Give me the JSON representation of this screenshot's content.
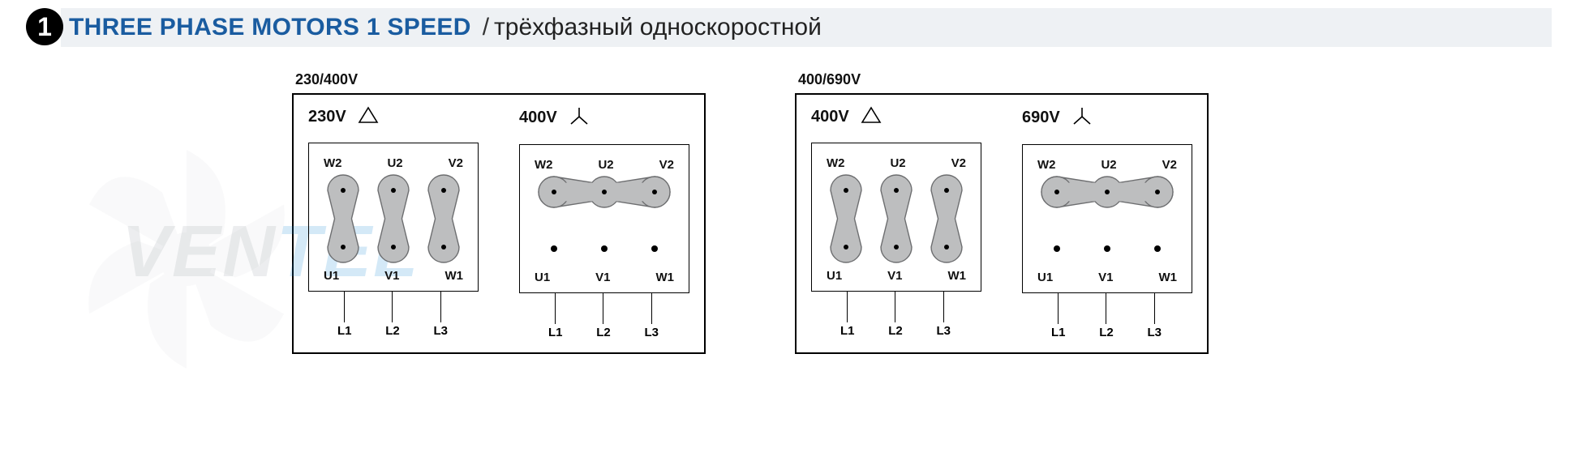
{
  "header": {
    "number": "1",
    "title_en": "THREE PHASE MOTORS 1 SPEED",
    "separator": "/",
    "title_ru": "трёхфазный односкоростной",
    "bg_color": "#eef1f4",
    "title_color": "#1a5ca0",
    "title_fontsize": 30
  },
  "watermark": {
    "text_gray": "VEN",
    "text_blue": "TEL",
    "fan_color": "#d3d6d9"
  },
  "colors": {
    "box_border": "#000000",
    "terminal_fill": "#bdbebf",
    "terminal_stroke": "#6d6e70",
    "dot_fill": "#000000",
    "text": "#111111",
    "bg": "#ffffff"
  },
  "terminal_geometry": {
    "node_radius": 19,
    "dot_radius": 3,
    "col_spacing": 62,
    "row_gap": 70,
    "stroke_width": 1.4
  },
  "groups": [
    {
      "label": "230/400V",
      "panels": [
        {
          "voltage": "230V",
          "symbol": "delta",
          "top_labels": [
            "W2",
            "U2",
            "V2"
          ],
          "bot_labels": [
            "U1",
            "V1",
            "W1"
          ],
          "line_labels": [
            "L1",
            "L2",
            "L3"
          ],
          "connection": "delta"
        },
        {
          "voltage": "400V",
          "symbol": "star",
          "top_labels": [
            "W2",
            "U2",
            "V2"
          ],
          "bot_labels": [
            "U1",
            "V1",
            "W1"
          ],
          "line_labels": [
            "L1",
            "L2",
            "L3"
          ],
          "connection": "star"
        }
      ]
    },
    {
      "label": "400/690V",
      "panels": [
        {
          "voltage": "400V",
          "symbol": "delta",
          "top_labels": [
            "W2",
            "U2",
            "V2"
          ],
          "bot_labels": [
            "U1",
            "V1",
            "W1"
          ],
          "line_labels": [
            "L1",
            "L2",
            "L3"
          ],
          "connection": "delta"
        },
        {
          "voltage": "690V",
          "symbol": "star",
          "top_labels": [
            "W2",
            "U2",
            "V2"
          ],
          "bot_labels": [
            "U1",
            "V1",
            "W1"
          ],
          "line_labels": [
            "L1",
            "L2",
            "L3"
          ],
          "connection": "star"
        }
      ]
    }
  ]
}
